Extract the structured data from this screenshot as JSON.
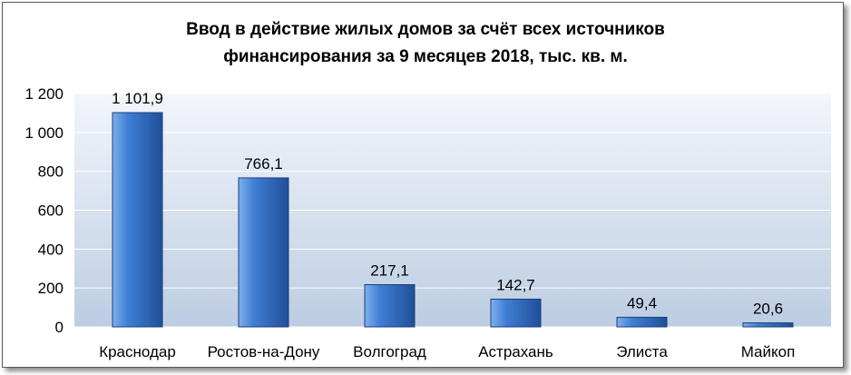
{
  "chart_data": {
    "type": "bar",
    "title_line1": "Ввод в действие жилых домов за счёт всех источников",
    "title_line2": "финансирования за 9 месяцев 2018, тыс. кв. м.",
    "categories": [
      "Краснодар",
      "Ростов-на-Дону",
      "Волгоград",
      "Астрахань",
      "Элиста",
      "Майкоп"
    ],
    "values": [
      1101.9,
      766.1,
      217.1,
      142.7,
      49.4,
      20.6
    ],
    "value_labels": [
      "1 101,9",
      "766,1",
      "217,1",
      "142,7",
      "49,4",
      "20,6"
    ],
    "y_ticks": [
      0,
      200,
      400,
      600,
      800,
      1000,
      1200
    ],
    "y_tick_labels": [
      "0",
      "200",
      "400",
      "600",
      "800",
      "1 000",
      "1 200"
    ],
    "ylim": [
      0,
      1200
    ],
    "grid": true,
    "xlabel": "",
    "ylabel": "",
    "colors": {
      "bar_light": "#7fb0ec",
      "bar_mid": "#3f7fd4",
      "bar_dark": "#1f4f9a",
      "plot_top": "#f3f6fb",
      "plot_bottom": "#bccde2"
    }
  }
}
